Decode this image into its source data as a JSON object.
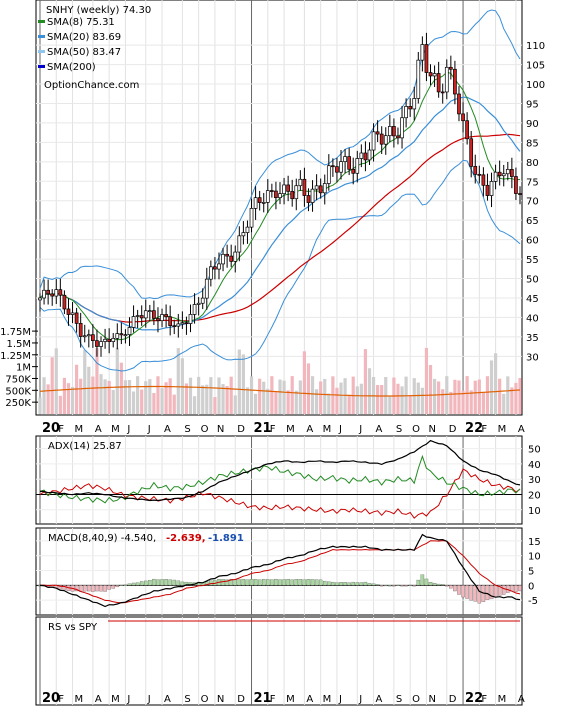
{
  "chart_data": {
    "type": "line",
    "title": "SNHY (weekly) 74.30",
    "legend": [
      {
        "label": "SMA(8) 75.31",
        "color": "#228b22"
      },
      {
        "label": "SMA(20) 83.69",
        "color": "#3a8fd8"
      },
      {
        "label": "SMA(50) 83.47",
        "color": "#8ec6ee"
      },
      {
        "label": "SMA(200)",
        "color": "#0000cc"
      }
    ],
    "watermark": "OptionChance.com",
    "x_labels": [
      {
        "label": "20",
        "bold": true,
        "w": 0
      },
      {
        "label": "F",
        "bold": false,
        "w": 4
      },
      {
        "label": "M",
        "bold": false,
        "w": 8
      },
      {
        "label": "A",
        "bold": false,
        "w": 13
      },
      {
        "label": "M",
        "bold": false,
        "w": 17
      },
      {
        "label": "J",
        "bold": false,
        "w": 21
      },
      {
        "label": "J",
        "bold": false,
        "w": 26
      },
      {
        "label": "A",
        "bold": false,
        "w": 30
      },
      {
        "label": "S",
        "bold": false,
        "w": 35
      },
      {
        "label": "O",
        "bold": false,
        "w": 39
      },
      {
        "label": "N",
        "bold": false,
        "w": 43
      },
      {
        "label": "D",
        "bold": false,
        "w": 48
      },
      {
        "label": "21",
        "bold": true,
        "w": 52
      },
      {
        "label": "F",
        "bold": false,
        "w": 56
      },
      {
        "label": "M",
        "bold": false,
        "w": 60
      },
      {
        "label": "A",
        "bold": false,
        "w": 65
      },
      {
        "label": "M",
        "bold": false,
        "w": 69
      },
      {
        "label": "J",
        "bold": false,
        "w": 73
      },
      {
        "label": "J",
        "bold": false,
        "w": 78
      },
      {
        "label": "A",
        "bold": false,
        "w": 82
      },
      {
        "label": "S",
        "bold": false,
        "w": 87
      },
      {
        "label": "O",
        "bold": false,
        "w": 91
      },
      {
        "label": "N",
        "bold": false,
        "w": 95
      },
      {
        "label": "D",
        "bold": false,
        "w": 100
      },
      {
        "label": "22",
        "bold": true,
        "w": 104
      },
      {
        "label": "F",
        "bold": false,
        "w": 108
      },
      {
        "label": "M",
        "bold": false,
        "w": 112
      },
      {
        "label": "A",
        "bold": false,
        "w": 117
      }
    ],
    "price_panel": {
      "y_ticks": [
        30,
        35,
        40,
        45,
        50,
        55,
        60,
        65,
        70,
        75,
        80,
        85,
        90,
        95,
        100,
        105,
        110
      ],
      "ylim": [
        27,
        118
      ],
      "price_path": [
        [
          0,
          45
        ],
        [
          4,
          46
        ],
        [
          8,
          41
        ],
        [
          10,
          36
        ],
        [
          12,
          34
        ],
        [
          14,
          33
        ],
        [
          16,
          34
        ],
        [
          18,
          36
        ],
        [
          20,
          35
        ],
        [
          22,
          37
        ],
        [
          24,
          40
        ],
        [
          26,
          42
        ],
        [
          28,
          41
        ],
        [
          30,
          40
        ],
        [
          32,
          38
        ],
        [
          34,
          37
        ],
        [
          36,
          40
        ],
        [
          38,
          43
        ],
        [
          40,
          46
        ],
        [
          42,
          51
        ],
        [
          44,
          54
        ],
        [
          46,
          56
        ],
        [
          48,
          58
        ],
        [
          50,
          62
        ],
        [
          52,
          66
        ],
        [
          54,
          70
        ],
        [
          56,
          72
        ],
        [
          58,
          74
        ],
        [
          60,
          72
        ],
        [
          62,
          71
        ],
        [
          64,
          73
        ],
        [
          66,
          72
        ],
        [
          68,
          74
        ],
        [
          70,
          75
        ],
        [
          72,
          77
        ],
        [
          74,
          79
        ],
        [
          76,
          80
        ],
        [
          78,
          81
        ],
        [
          80,
          82
        ],
        [
          82,
          84
        ],
        [
          84,
          86
        ],
        [
          86,
          88
        ],
        [
          88,
          90
        ],
        [
          90,
          92
        ],
        [
          92,
          96
        ],
        [
          94,
          108
        ],
        [
          96,
          104
        ],
        [
          98,
          100
        ],
        [
          100,
          103
        ],
        [
          102,
          97
        ],
        [
          104,
          88
        ],
        [
          106,
          82
        ],
        [
          108,
          76
        ],
        [
          110,
          73
        ],
        [
          112,
          74
        ],
        [
          114,
          78
        ],
        [
          116,
          76
        ],
        [
          118,
          74
        ]
      ]
    },
    "volume_panel": {
      "y_ticks": [
        "250K",
        "500K",
        "750K",
        "1M",
        "1.25M",
        "1.5M",
        "1.75M"
      ]
    },
    "adx_panel": {
      "label": "ADX(14) 25.87",
      "y_ticks": [
        10,
        20,
        30,
        40,
        50
      ],
      "ylim": [
        2,
        55
      ],
      "adx": [
        [
          0,
          22
        ],
        [
          4,
          21
        ],
        [
          8,
          20
        ],
        [
          12,
          21
        ],
        [
          16,
          20
        ],
        [
          20,
          18
        ],
        [
          24,
          17
        ],
        [
          28,
          16
        ],
        [
          32,
          17
        ],
        [
          36,
          18
        ],
        [
          40,
          22
        ],
        [
          44,
          28
        ],
        [
          48,
          32
        ],
        [
          52,
          36
        ],
        [
          56,
          40
        ],
        [
          60,
          42
        ],
        [
          64,
          41
        ],
        [
          68,
          42
        ],
        [
          72,
          41
        ],
        [
          76,
          42
        ],
        [
          80,
          41
        ],
        [
          84,
          40
        ],
        [
          88,
          43
        ],
        [
          92,
          48
        ],
        [
          96,
          55
        ],
        [
          100,
          52
        ],
        [
          104,
          42
        ],
        [
          108,
          36
        ],
        [
          112,
          33
        ],
        [
          116,
          28
        ],
        [
          118,
          26
        ]
      ],
      "plus_di": [
        [
          0,
          22
        ],
        [
          4,
          20
        ],
        [
          8,
          18
        ],
        [
          12,
          17
        ],
        [
          16,
          16
        ],
        [
          20,
          17
        ],
        [
          24,
          22
        ],
        [
          28,
          26
        ],
        [
          32,
          24
        ],
        [
          36,
          25
        ],
        [
          40,
          28
        ],
        [
          44,
          32
        ],
        [
          48,
          34
        ],
        [
          52,
          36
        ],
        [
          56,
          38
        ],
        [
          60,
          35
        ],
        [
          64,
          33
        ],
        [
          68,
          30
        ],
        [
          72,
          31
        ],
        [
          76,
          29
        ],
        [
          80,
          30
        ],
        [
          84,
          28
        ],
        [
          88,
          30
        ],
        [
          92,
          29
        ],
        [
          94,
          44
        ],
        [
          96,
          34
        ],
        [
          100,
          28
        ],
        [
          104,
          24
        ],
        [
          108,
          20
        ],
        [
          112,
          21
        ],
        [
          116,
          23
        ],
        [
          118,
          22
        ]
      ],
      "minus_di": [
        [
          0,
          20
        ],
        [
          4,
          22
        ],
        [
          8,
          24
        ],
        [
          12,
          26
        ],
        [
          16,
          24
        ],
        [
          20,
          20
        ],
        [
          24,
          18
        ],
        [
          28,
          17
        ],
        [
          32,
          16
        ],
        [
          36,
          18
        ],
        [
          40,
          21
        ],
        [
          44,
          18
        ],
        [
          48,
          15
        ],
        [
          52,
          12
        ],
        [
          56,
          11
        ],
        [
          60,
          12
        ],
        [
          64,
          11
        ],
        [
          68,
          10
        ],
        [
          72,
          9
        ],
        [
          76,
          10
        ],
        [
          80,
          9
        ],
        [
          84,
          8
        ],
        [
          88,
          9
        ],
        [
          92,
          6
        ],
        [
          96,
          8
        ],
        [
          100,
          20
        ],
        [
          104,
          36
        ],
        [
          108,
          30
        ],
        [
          112,
          26
        ],
        [
          116,
          24
        ],
        [
          118,
          22
        ]
      ]
    },
    "macd_panel": {
      "label": "MACD(8,40,9) -4.540,",
      "signal_label": "-2.639,",
      "hist_label": "-1.891",
      "y_ticks": [
        -5,
        0,
        5,
        10,
        15
      ],
      "ylim": [
        -9,
        18
      ],
      "macd": [
        [
          0,
          0
        ],
        [
          4,
          -1
        ],
        [
          8,
          -3
        ],
        [
          12,
          -5
        ],
        [
          16,
          -7
        ],
        [
          20,
          -6
        ],
        [
          24,
          -4
        ],
        [
          28,
          -2
        ],
        [
          32,
          -1
        ],
        [
          36,
          0
        ],
        [
          40,
          1
        ],
        [
          44,
          3
        ],
        [
          48,
          4
        ],
        [
          52,
          6
        ],
        [
          56,
          7
        ],
        [
          60,
          9
        ],
        [
          64,
          10
        ],
        [
          68,
          12
        ],
        [
          72,
          13
        ],
        [
          76,
          13
        ],
        [
          80,
          13
        ],
        [
          84,
          12
        ],
        [
          88,
          12
        ],
        [
          92,
          12
        ],
        [
          94,
          17
        ],
        [
          96,
          16
        ],
        [
          100,
          15
        ],
        [
          104,
          6
        ],
        [
          108,
          -2
        ],
        [
          112,
          -4
        ],
        [
          116,
          -4
        ],
        [
          118,
          -5
        ]
      ],
      "signal": [
        [
          0,
          0
        ],
        [
          4,
          0
        ],
        [
          8,
          -1
        ],
        [
          12,
          -3
        ],
        [
          16,
          -5
        ],
        [
          20,
          -6
        ],
        [
          24,
          -5
        ],
        [
          28,
          -4
        ],
        [
          32,
          -3
        ],
        [
          36,
          -1
        ],
        [
          40,
          0
        ],
        [
          44,
          1
        ],
        [
          48,
          2
        ],
        [
          52,
          4
        ],
        [
          56,
          5
        ],
        [
          60,
          7
        ],
        [
          64,
          8
        ],
        [
          68,
          10
        ],
        [
          72,
          12
        ],
        [
          76,
          12
        ],
        [
          80,
          12
        ],
        [
          84,
          12
        ],
        [
          88,
          12
        ],
        [
          92,
          12
        ],
        [
          96,
          15
        ],
        [
          100,
          15
        ],
        [
          104,
          10
        ],
        [
          108,
          4
        ],
        [
          112,
          0
        ],
        [
          116,
          -2
        ],
        [
          118,
          -3
        ]
      ]
    },
    "rs_panel": {
      "label": "RS vs SPY"
    }
  }
}
